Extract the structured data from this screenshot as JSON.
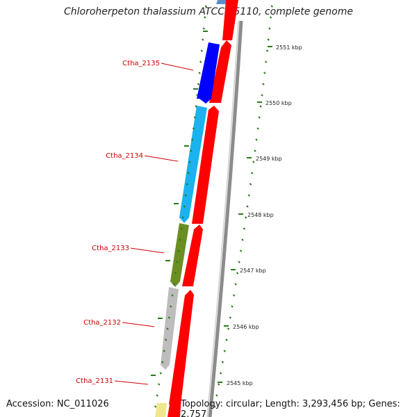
{
  "title": "Chloroherpeton thalassium ATCC 35110, complete genome",
  "footer": {
    "accession": "Accession: NC_011026",
    "summary": "Topology: circular; Length: 3,293,456 bp; Genes: 2,757"
  },
  "gene_labels": [
    {
      "text": "Ctha_2135"
    },
    {
      "text": "Ctha_2134"
    },
    {
      "text": "Ctha_2133"
    },
    {
      "text": "Ctha_2132"
    },
    {
      "text": "Ctha_2131"
    }
  ],
  "scale_labels": [
    {
      "text": "2551 kbp"
    },
    {
      "text": "2550 kbp"
    },
    {
      "text": "2549 kbp"
    },
    {
      "text": "2548 kbp"
    },
    {
      "text": "2547 kbp"
    },
    {
      "text": "2546 kbp"
    },
    {
      "text": "2545 kbp"
    }
  ],
  "colors": {
    "label": "#cc0000",
    "forward_gene": "#ff0000",
    "reverse_gene_2135": "#0000ff",
    "reverse_gene_2134": "#1ab2ef",
    "reverse_gene_2133": "#6b8e23",
    "reverse_gene_2132": "#bdbdbd",
    "reverse_gene_2131": "#f0e68c",
    "tick": "#2a7a1a",
    "backbone": "#8c8c8c"
  }
}
